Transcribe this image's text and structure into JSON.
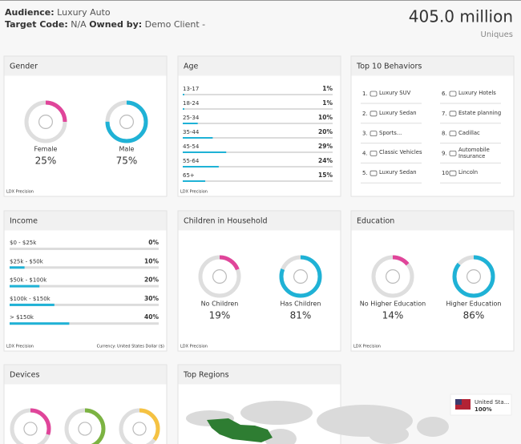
{
  "header": {
    "audience_label": "Audience:",
    "audience": "Luxury Auto",
    "target_label": "Target Code:",
    "target": "N/A",
    "owner_label": "Owned by:",
    "owner": "Demo Client -",
    "total": "405.0 million",
    "total_unit": "Uniques"
  },
  "gender": {
    "title": "Gender",
    "items": [
      {
        "label": "Female",
        "value": 25,
        "value_label": "25%",
        "color": "#e0459a"
      },
      {
        "label": "Male",
        "value": 75,
        "value_label": "75%",
        "color": "#1fb2d6"
      }
    ],
    "footer": "LDX Precision"
  },
  "age": {
    "title": "Age",
    "color": "#1fb2d6",
    "rows": [
      {
        "label": "13-17",
        "value": 1,
        "value_label": "1%"
      },
      {
        "label": "18-24",
        "value": 1,
        "value_label": "1%"
      },
      {
        "label": "25-34",
        "value": 10,
        "value_label": "10%"
      },
      {
        "label": "35-44",
        "value": 20,
        "value_label": "20%"
      },
      {
        "label": "45-54",
        "value": 29,
        "value_label": "29%"
      },
      {
        "label": "55-64",
        "value": 24,
        "value_label": "24%"
      },
      {
        "label": "65+",
        "value": 15,
        "value_label": "15%"
      }
    ],
    "footer": "LDX Precision"
  },
  "behaviors": {
    "title": "Top 10 Behaviors",
    "items": [
      {
        "rank": "1.",
        "label": "Luxury SUV"
      },
      {
        "rank": "2.",
        "label": "Luxury Sedan"
      },
      {
        "rank": "3.",
        "label": "Sports..."
      },
      {
        "rank": "4.",
        "label": "Classic Vehicles"
      },
      {
        "rank": "5.",
        "label": "Luxury Sedan"
      },
      {
        "rank": "6.",
        "label": "Luxury Hotels"
      },
      {
        "rank": "7.",
        "label": "Estate planning"
      },
      {
        "rank": "8.",
        "label": "Cadillac"
      },
      {
        "rank": "9.",
        "label": "Automobile Insurance"
      },
      {
        "rank": "10.",
        "label": "Lincoln"
      }
    ]
  },
  "income": {
    "title": "Income",
    "color": "#1fb2d6",
    "rows": [
      {
        "label": "$0 - $25k",
        "value": 0,
        "value_label": "0%"
      },
      {
        "label": "$25k - $50k",
        "value": 10,
        "value_label": "10%"
      },
      {
        "label": "$50k - $100k",
        "value": 20,
        "value_label": "20%"
      },
      {
        "label": "$100k - $150k",
        "value": 30,
        "value_label": "30%"
      },
      {
        "label": "> $150k",
        "value": 40,
        "value_label": "40%"
      }
    ],
    "footer": "LDX Precision",
    "currency": "Currency: United States Dollar ($)"
  },
  "children": {
    "title": "Children in Household",
    "items": [
      {
        "label": "No Children",
        "value": 19,
        "value_label": "19%",
        "color": "#e0459a"
      },
      {
        "label": "Has Children",
        "value": 81,
        "value_label": "81%",
        "color": "#1fb2d6"
      }
    ],
    "footer": "LDX Precision"
  },
  "education": {
    "title": "Education",
    "items": [
      {
        "label": "No Higher Education",
        "value": 14,
        "value_label": "14%",
        "color": "#e0459a"
      },
      {
        "label": "Higher Education",
        "value": 86,
        "value_label": "86%",
        "color": "#1fb2d6"
      }
    ],
    "footer": "LDX Precision"
  },
  "devices": {
    "title": "Devices",
    "items": [
      {
        "value": 30,
        "color": "#e0459a"
      },
      {
        "value": 45,
        "color": "#7cb342"
      },
      {
        "value": 35,
        "color": "#f5c242"
      }
    ]
  },
  "regions": {
    "title": "Top Regions",
    "color": "#2e7d32",
    "items": [
      {
        "label": "United Sta...",
        "value": 100,
        "value_label": "100%"
      }
    ]
  }
}
